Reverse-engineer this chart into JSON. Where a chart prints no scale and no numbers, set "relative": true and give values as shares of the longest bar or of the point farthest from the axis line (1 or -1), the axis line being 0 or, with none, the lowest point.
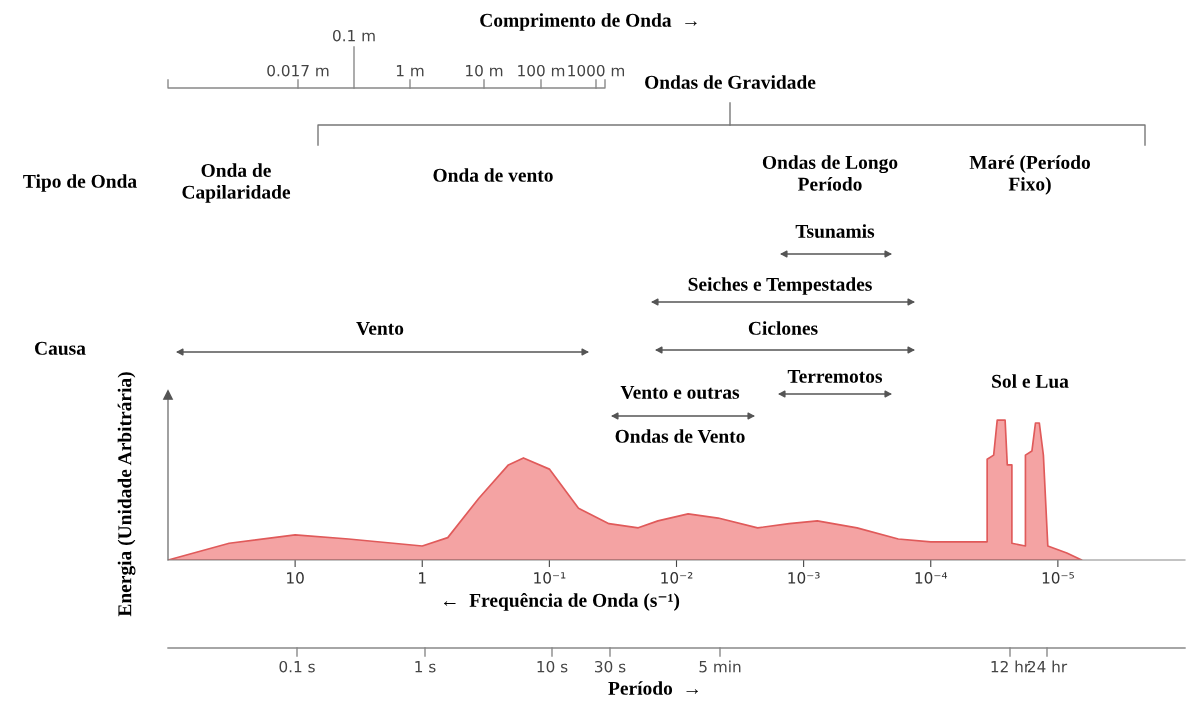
{
  "chart_data": {
    "type": "area",
    "relative": true,
    "log": "x",
    "x": [
      100,
      33,
      10,
      3.8,
      1,
      0.63,
      0.36,
      0.21,
      0.16,
      0.1,
      0.059,
      0.034,
      0.02,
      0.014,
      0.0081,
      0.0047,
      0.0023,
      0.0013,
      0.00078,
      0.00038,
      0.00018,
      0.0001,
      3.6e-05,
      3.6e-05,
      3.2e-05,
      3e-05,
      2.6e-05,
      2.5e-05,
      2.3e-05,
      2.3e-05,
      1.8e-05,
      1.8e-05,
      1.6e-05,
      1.5e-05,
      1.4e-05,
      1.3e-05,
      1.2e-05,
      8.5e-06,
      6.5e-06
    ],
    "series": [
      {
        "color": "#f4a3a3",
        "values": [
          0,
          0.12,
          0.18,
          0.15,
          0.1,
          0.16,
          0.44,
          0.68,
          0.73,
          0.65,
          0.37,
          0.26,
          0.23,
          0.28,
          0.33,
          0.3,
          0.23,
          0.26,
          0.28,
          0.23,
          0.15,
          0.13,
          0.13,
          0.72,
          0.75,
          1.0,
          1.0,
          0.68,
          0.68,
          0.12,
          0.1,
          0.75,
          0.78,
          0.98,
          0.98,
          0.75,
          0.1,
          0.05,
          0
        ]
      }
    ],
    "xlim": [
      100,
      1e-06
    ],
    "xticks": [
      10,
      1,
      {
        "value": 0.1,
        "label": "10⁻¹"
      },
      {
        "value": 0.01,
        "label": "10⁻²"
      },
      {
        "value": 0.001,
        "label": "10⁻³"
      },
      {
        "value": 0.0001,
        "label": "10⁻⁴"
      },
      {
        "value": 1e-05,
        "label": "10⁻⁵"
      }
    ],
    "xlabel": "←  Frequência de Onda (s⁻¹)",
    "ylabel": "Energia (Unidade Arbitrária)",
    "annotations": [
      "Ondas de Gravidade",
      "Tipo de Onda",
      "Onda de\nCapilaridade",
      "Onda de vento",
      "Ondas de Longo\nPeríodo",
      "Maré (Período\nFixo)",
      "Tsunamis",
      "Seiches e Tempestades",
      "Ciclones",
      "Vento",
      "Causa",
      "Terremotos",
      "Vento e outras",
      "Ondas de Vento",
      "Sol e Lua",
      "Comprimento de Onda  →",
      "0.017 m",
      "0.1 m",
      "1 m",
      "10 m",
      "100 m",
      "1000 m",
      "Período  →",
      "0.1 s",
      "1 s",
      "10 s",
      "30 s",
      "5 min",
      "12 hr",
      "24 hr"
    ]
  }
}
